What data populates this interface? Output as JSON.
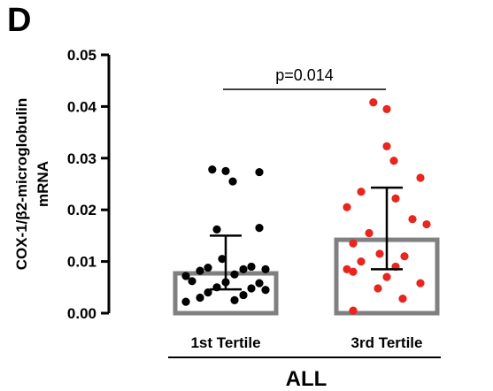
{
  "panel_label": "D",
  "chart_data": {
    "type": "bar",
    "title": "",
    "ylabel_line1": "COX-1/β2-microglobulin",
    "ylabel_line2": "mRNA",
    "xlabel": "ALL",
    "ylim": [
      0,
      0.05
    ],
    "yticks": [
      0,
      0.01,
      0.02,
      0.03,
      0.04,
      0.05
    ],
    "ytick_labels": [
      "0.00",
      "0.01",
      "0.02",
      "0.03",
      "0.04",
      "0.05"
    ],
    "categories": [
      "1st Tertile",
      "3rd Tertile"
    ],
    "bar_values": [
      0.0077,
      0.0142
    ],
    "error_bars": [
      {
        "lower": 0.0046,
        "upper": 0.015
      },
      {
        "lower": 0.0085,
        "upper": 0.0243
      }
    ],
    "bar_edge_color": "#808080",
    "point_colors": [
      "#000000",
      "#e8251f"
    ],
    "points": [
      [
        0.0278,
        0.0275,
        0.0273,
        0.0255,
        0.0165,
        0.0162,
        0.0105,
        0.009,
        0.0085,
        0.0088,
        0.0085,
        0.0082,
        0.0075,
        0.0072,
        0.0062,
        0.006,
        0.0058,
        0.005,
        0.0048,
        0.0045,
        0.004,
        0.0035,
        0.003,
        0.0025,
        0.0022
      ],
      [
        0.0408,
        0.0395,
        0.0323,
        0.0295,
        0.0262,
        0.0235,
        0.0222,
        0.0205,
        0.0182,
        0.0172,
        0.0155,
        0.0135,
        0.0115,
        0.011,
        0.01,
        0.009,
        0.0085,
        0.008,
        0.007,
        0.0058,
        0.0048,
        0.0028,
        0.0005
      ]
    ],
    "significance": {
      "label": "p=0.014"
    }
  }
}
